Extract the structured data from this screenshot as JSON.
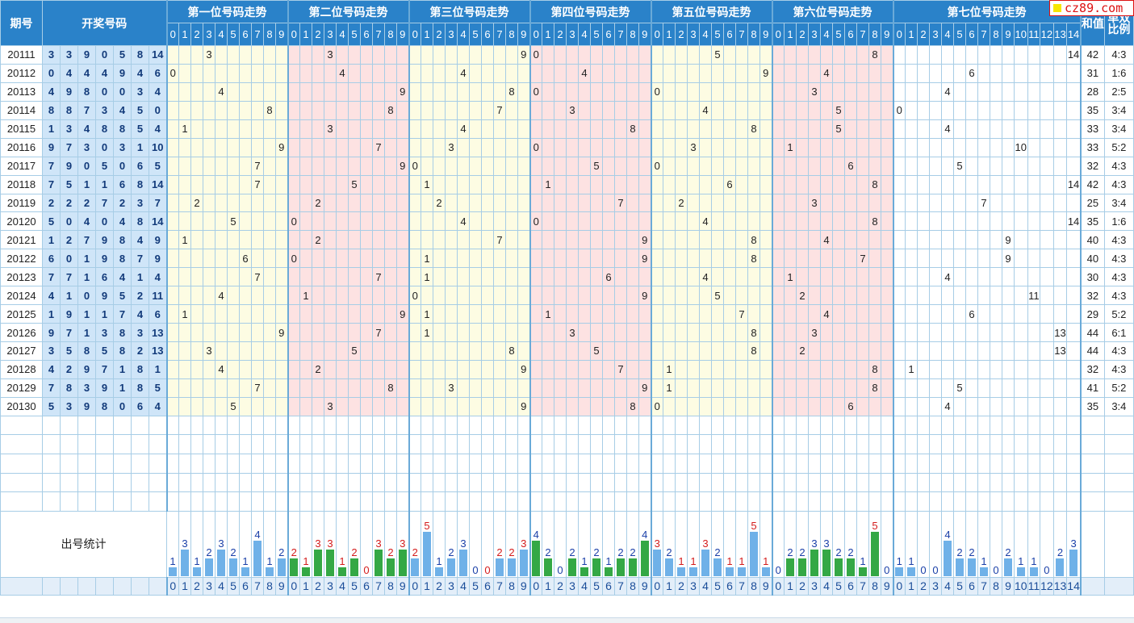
{
  "headers": {
    "issue": "期号",
    "draw": "开奖号码",
    "sum": "和值",
    "ratio": "单双比例",
    "stats_label": "出号统计",
    "groups": [
      "第一位号码走势",
      "第二位号码走势",
      "第三位号码走势",
      "第四位号码走势",
      "第五位号码走势",
      "第六位号码走势",
      "第七位号码走势"
    ]
  },
  "logo": {
    "text": "cz89.com"
  },
  "colors": {
    "header_bg": "#2a82c9",
    "draw_bg": "#cfe5f8",
    "zone_yellow": "#fdfce3",
    "zone_pink": "#fde2e2",
    "bar_blue": "#6fb1e8",
    "bar_green": "#34a845",
    "stat_blue": "#1a3fa8",
    "stat_red": "#d41c1c"
  },
  "rows": [
    {
      "issue": "20111",
      "nums": [
        3,
        3,
        9,
        0,
        5,
        8,
        14
      ],
      "sum": "42",
      "ratio": "4:3"
    },
    {
      "issue": "20112",
      "nums": [
        0,
        4,
        4,
        4,
        9,
        4,
        6
      ],
      "sum": "31",
      "ratio": "1:6"
    },
    {
      "issue": "20113",
      "nums": [
        4,
        9,
        8,
        0,
        0,
        3,
        4
      ],
      "sum": "28",
      "ratio": "2:5"
    },
    {
      "issue": "20114",
      "nums": [
        8,
        8,
        7,
        3,
        4,
        5,
        0
      ],
      "sum": "35",
      "ratio": "3:4"
    },
    {
      "issue": "20115",
      "nums": [
        1,
        3,
        4,
        8,
        8,
        5,
        4
      ],
      "sum": "33",
      "ratio": "3:4"
    },
    {
      "issue": "20116",
      "nums": [
        9,
        7,
        3,
        0,
        3,
        1,
        10
      ],
      "sum": "33",
      "ratio": "5:2"
    },
    {
      "issue": "20117",
      "nums": [
        7,
        9,
        0,
        5,
        0,
        6,
        5
      ],
      "sum": "32",
      "ratio": "4:3"
    },
    {
      "issue": "20118",
      "nums": [
        7,
        5,
        1,
        1,
        6,
        8,
        14
      ],
      "sum": "42",
      "ratio": "4:3"
    },
    {
      "issue": "20119",
      "nums": [
        2,
        2,
        2,
        7,
        2,
        3,
        7
      ],
      "sum": "25",
      "ratio": "3:4"
    },
    {
      "issue": "20120",
      "nums": [
        5,
        0,
        4,
        0,
        4,
        8,
        14
      ],
      "sum": "35",
      "ratio": "1:6"
    },
    {
      "issue": "20121",
      "nums": [
        1,
        2,
        7,
        9,
        8,
        4,
        9
      ],
      "sum": "40",
      "ratio": "4:3"
    },
    {
      "issue": "20122",
      "nums": [
        6,
        0,
        1,
        9,
        8,
        7,
        9
      ],
      "sum": "40",
      "ratio": "4:3"
    },
    {
      "issue": "20123",
      "nums": [
        7,
        7,
        1,
        6,
        4,
        1,
        4
      ],
      "sum": "30",
      "ratio": "4:3"
    },
    {
      "issue": "20124",
      "nums": [
        4,
        1,
        0,
        9,
        5,
        2,
        11
      ],
      "sum": "32",
      "ratio": "4:3"
    },
    {
      "issue": "20125",
      "nums": [
        1,
        9,
        1,
        1,
        7,
        4,
        6
      ],
      "sum": "29",
      "ratio": "5:2"
    },
    {
      "issue": "20126",
      "nums": [
        9,
        7,
        1,
        3,
        8,
        3,
        13
      ],
      "sum": "44",
      "ratio": "6:1"
    },
    {
      "issue": "20127",
      "nums": [
        3,
        5,
        8,
        5,
        8,
        2,
        13
      ],
      "sum": "44",
      "ratio": "4:3"
    },
    {
      "issue": "20128",
      "nums": [
        4,
        2,
        9,
        7,
        1,
        8,
        1
      ],
      "sum": "32",
      "ratio": "4:3"
    },
    {
      "issue": "20129",
      "nums": [
        7,
        8,
        3,
        9,
        1,
        8,
        5
      ],
      "sum": "41",
      "ratio": "5:2"
    },
    {
      "issue": "20130",
      "nums": [
        5,
        3,
        9,
        8,
        0,
        6,
        4
      ],
      "sum": "35",
      "ratio": "3:4"
    }
  ],
  "stats": [
    [
      1,
      3,
      1,
      2,
      3,
      2,
      1,
      4,
      1,
      2
    ],
    [
      2,
      1,
      3,
      3,
      1,
      2,
      0,
      3,
      2,
      3
    ],
    [
      2,
      5,
      1,
      2,
      3,
      0,
      0,
      2,
      2,
      3
    ],
    [
      4,
      2,
      0,
      2,
      1,
      2,
      1,
      2,
      2,
      4
    ],
    [
      3,
      2,
      1,
      1,
      3,
      2,
      1,
      1,
      5,
      1
    ],
    [
      0,
      2,
      2,
      3,
      3,
      2,
      2,
      1,
      5,
      0
    ],
    [
      1,
      1,
      0,
      0,
      4,
      2,
      2,
      1,
      0,
      2,
      1,
      1,
      0,
      2,
      3
    ]
  ],
  "stats_color": [
    [
      "blue",
      "blue",
      "blue",
      "blue",
      "blue",
      "blue",
      "blue",
      "blue",
      "blue",
      "blue"
    ],
    [
      "red",
      "red",
      "red",
      "red",
      "red",
      "red",
      "red",
      "red",
      "red",
      "red"
    ],
    [
      "red",
      "red",
      "blue",
      "blue",
      "blue",
      "blue",
      "red",
      "red",
      "red",
      "red"
    ],
    [
      "blue",
      "blue",
      "blue",
      "blue",
      "blue",
      "blue",
      "blue",
      "blue",
      "blue",
      "blue"
    ],
    [
      "red",
      "blue",
      "red",
      "red",
      "red",
      "blue",
      "red",
      "red",
      "red",
      "red"
    ],
    [
      "blue",
      "blue",
      "blue",
      "blue",
      "blue",
      "blue",
      "blue",
      "blue",
      "red",
      "blue"
    ],
    [
      "blue",
      "blue",
      "blue",
      "blue",
      "blue",
      "blue",
      "blue",
      "blue",
      "blue",
      "blue",
      "blue",
      "blue",
      "blue",
      "blue",
      "blue"
    ]
  ],
  "bar_color": [
    [
      "blue",
      "blue",
      "blue",
      "blue",
      "blue",
      "blue",
      "blue",
      "blue",
      "blue",
      "blue"
    ],
    [
      "green",
      "green",
      "green",
      "green",
      "green",
      "green",
      "green",
      "green",
      "green",
      "green"
    ],
    [
      "blue",
      "blue",
      "blue",
      "blue",
      "blue",
      "blue",
      "blue",
      "blue",
      "blue",
      "blue"
    ],
    [
      "green",
      "green",
      "green",
      "green",
      "green",
      "green",
      "green",
      "green",
      "green",
      "green"
    ],
    [
      "blue",
      "blue",
      "blue",
      "blue",
      "blue",
      "blue",
      "blue",
      "blue",
      "blue",
      "blue"
    ],
    [
      "green",
      "green",
      "green",
      "green",
      "green",
      "green",
      "green",
      "green",
      "green",
      "green"
    ],
    [
      "blue",
      "blue",
      "blue",
      "blue",
      "blue",
      "blue",
      "blue",
      "blue",
      "blue",
      "blue",
      "blue",
      "blue",
      "blue",
      "blue",
      "blue"
    ]
  ]
}
